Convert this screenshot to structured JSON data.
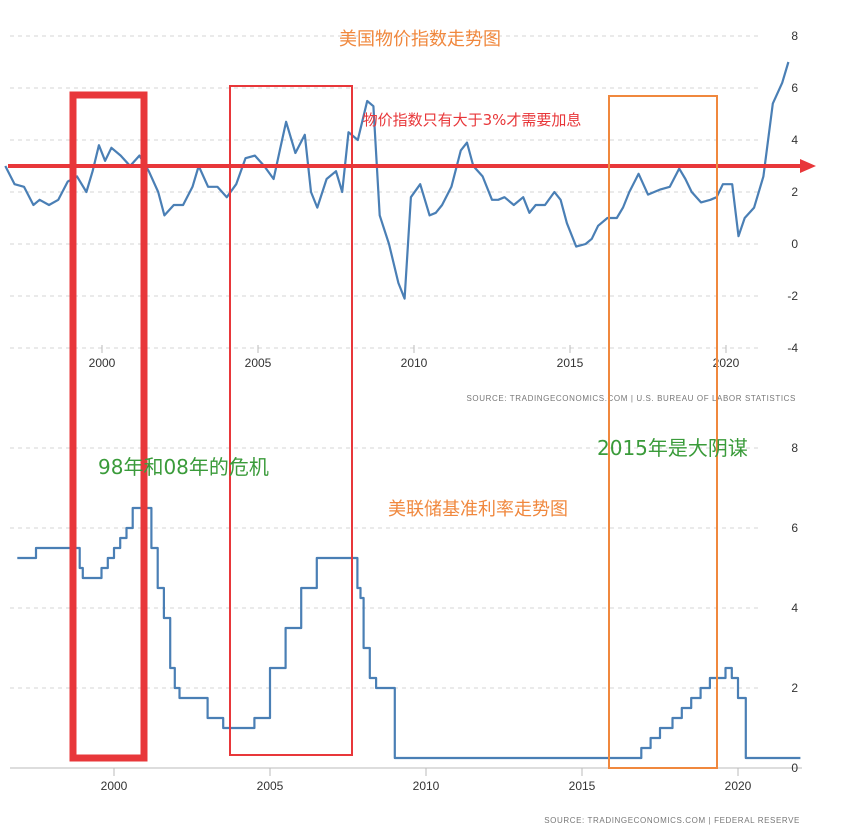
{
  "colors": {
    "series": "#4a7fb5",
    "red_box": "#e8373a",
    "orange_box": "#f0883e",
    "green_text": "#3a9b3a",
    "orange_text": "#f0883e",
    "red_text": "#e8373a"
  },
  "top_title": "美国物价指数走势图",
  "top_note": "物价指数只有大于3%才需要加息",
  "top_source": "SOURCE: TRADINGECONOMICS.COM  |  U.S. BUREAU OF LABOR STATISTICS",
  "bottom_title": "美联储基准利率走势图",
  "bottom_source": "SOURCE: TRADINGECONOMICS.COM  |  FEDERAL RESERVE",
  "note_crisis": "98年和08年的危机",
  "note_2015": "2015年是大阴谋",
  "chart_data": [
    {
      "type": "line",
      "title": "美国物价指数走势图",
      "yticks": [
        "8",
        "6",
        "4",
        "2",
        "0",
        "-2",
        "-4"
      ],
      "xticks": [
        "2000",
        "2005",
        "2010",
        "2015",
        "2020"
      ],
      "ylim": [
        -4,
        8
      ],
      "y_axis_side": "right",
      "grid": true,
      "threshold_line": 3,
      "series": [
        {
          "x": [
            1996.9,
            1997.2,
            1997.5,
            1997.8,
            1998.0,
            1998.3,
            1998.6,
            1998.9,
            1999.2,
            1999.5,
            1999.7,
            1999.9,
            2000.1,
            2000.3,
            2000.6,
            2000.9,
            2001.2,
            2001.5,
            2001.8,
            2002.0,
            2002.3,
            2002.6,
            2002.9,
            2003.1,
            2003.4,
            2003.7,
            2004.0,
            2004.3,
            2004.6,
            2004.9,
            2005.2,
            2005.5,
            2005.7,
            2005.9,
            2006.2,
            2006.5,
            2006.7,
            2006.9,
            2007.2,
            2007.5,
            2007.7,
            2007.9,
            2008.2,
            2008.5,
            2008.7,
            2008.9,
            2009.2,
            2009.5,
            2009.7,
            2009.9,
            2010.2,
            2010.5,
            2010.7,
            2010.9,
            2011.2,
            2011.5,
            2011.7,
            2011.9,
            2012.2,
            2012.5,
            2012.7,
            2012.9,
            2013.2,
            2013.5,
            2013.7,
            2013.9,
            2014.2,
            2014.5,
            2014.7,
            2014.9,
            2015.2,
            2015.5,
            2015.7,
            2015.9,
            2016.2,
            2016.5,
            2016.7,
            2016.9,
            2017.2,
            2017.5,
            2017.7,
            2017.9,
            2018.2,
            2018.5,
            2018.7,
            2018.9,
            2019.2,
            2019.5,
            2019.7,
            2019.9,
            2020.2,
            2020.4,
            2020.6,
            2020.9,
            2021.2,
            2021.5,
            2021.8,
            2022.0
          ],
          "values": [
            3.0,
            2.3,
            2.2,
            1.5,
            1.7,
            1.5,
            1.7,
            2.4,
            2.6,
            2.0,
            2.8,
            3.8,
            3.2,
            3.7,
            3.4,
            3.0,
            3.4,
            2.8,
            2.0,
            1.1,
            1.5,
            1.5,
            2.2,
            3.0,
            2.2,
            2.2,
            1.8,
            2.3,
            3.3,
            3.4,
            3.0,
            2.5,
            3.6,
            4.7,
            3.5,
            4.2,
            2.0,
            1.4,
            2.5,
            2.8,
            2.0,
            4.3,
            4.0,
            5.5,
            5.3,
            1.1,
            0.0,
            -1.5,
            -2.1,
            1.8,
            2.3,
            1.1,
            1.2,
            1.5,
            2.2,
            3.6,
            3.9,
            3.0,
            2.6,
            1.7,
            1.7,
            1.8,
            1.5,
            1.8,
            1.2,
            1.5,
            1.5,
            2.0,
            1.7,
            0.8,
            -0.1,
            0.0,
            0.2,
            0.7,
            1.0,
            1.0,
            1.4,
            2.0,
            2.7,
            1.9,
            2.0,
            2.1,
            2.2,
            2.9,
            2.5,
            2.0,
            1.6,
            1.7,
            1.8,
            2.3,
            2.3,
            0.3,
            1.0,
            1.4,
            2.6,
            5.4,
            6.2,
            7.0
          ]
        }
      ]
    },
    {
      "type": "line",
      "title": "美联储基准利率走势图",
      "yticks": [
        "8",
        "6",
        "4",
        "2",
        "0"
      ],
      "xticks": [
        "2000",
        "2005",
        "2010",
        "2015",
        "2020"
      ],
      "ylim": [
        0,
        8
      ],
      "y_axis_side": "right",
      "grid": true,
      "series": [
        {
          "step": true,
          "x": [
            1996.9,
            1997.2,
            1997.5,
            1998.0,
            1998.4,
            1998.75,
            1998.9,
            1999.0,
            1999.4,
            1999.6,
            1999.8,
            2000.0,
            2000.2,
            2000.4,
            2000.6,
            2001.0,
            2001.2,
            2001.4,
            2001.6,
            2001.8,
            2001.95,
            2002.1,
            2002.9,
            2003.0,
            2003.5,
            2004.0,
            2004.5,
            2005.0,
            2005.5,
            2006.0,
            2006.5,
            2007.5,
            2007.8,
            2007.9,
            2008.0,
            2008.2,
            2008.4,
            2008.8,
            2009.0,
            2015.9,
            2016.9,
            2017.2,
            2017.5,
            2017.9,
            2018.2,
            2018.5,
            2018.8,
            2019.1,
            2019.6,
            2019.8,
            2020.0,
            2020.15,
            2020.25,
            2022.0
          ],
          "values": [
            5.25,
            5.25,
            5.5,
            5.5,
            5.5,
            5.5,
            5.0,
            4.75,
            4.75,
            5.0,
            5.25,
            5.5,
            5.75,
            6.0,
            6.5,
            6.5,
            5.5,
            4.5,
            3.75,
            2.5,
            2.0,
            1.75,
            1.75,
            1.25,
            1.0,
            1.0,
            1.25,
            2.5,
            3.5,
            4.5,
            5.25,
            5.25,
            4.5,
            4.25,
            3.0,
            2.25,
            2.0,
            2.0,
            0.25,
            0.25,
            0.5,
            0.75,
            1.0,
            1.25,
            1.5,
            1.75,
            2.0,
            2.25,
            2.5,
            2.25,
            1.75,
            1.75,
            0.25,
            0.25
          ]
        }
      ]
    }
  ]
}
